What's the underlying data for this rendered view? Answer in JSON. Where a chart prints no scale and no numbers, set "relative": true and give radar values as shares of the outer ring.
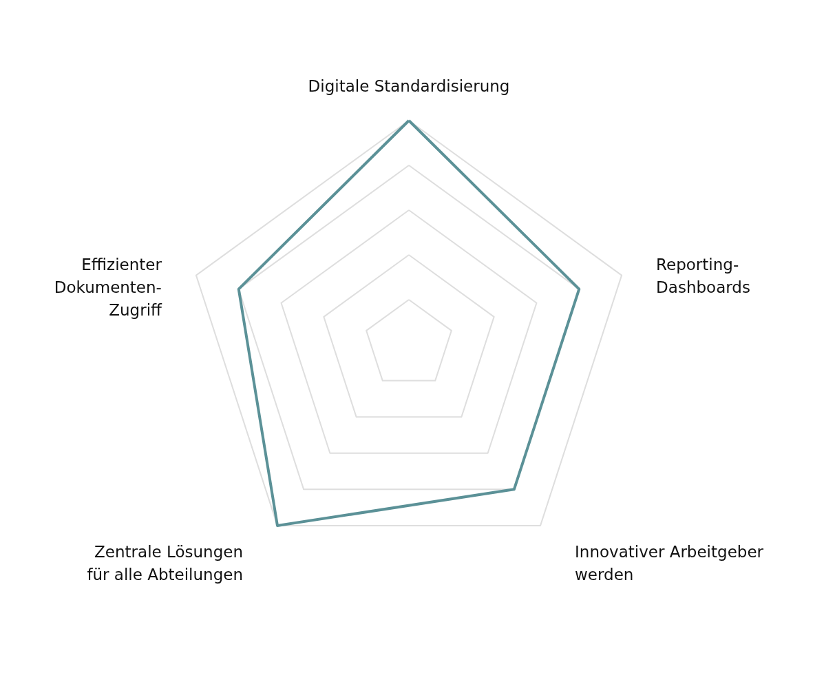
{
  "chart_data": {
    "type": "radar",
    "relative": true,
    "grid": true,
    "categories": [
      "Digitale Standardisierung",
      "Reporting-\nDashboards",
      "Innovativer Arbeitgeber\nwerden",
      "Zentrale Lösungen\nfür alle Abteilungen",
      "Effizienter\nDokumenten-\nZugriff"
    ],
    "series": [
      {
        "color": "#5b9197",
        "values": [
          1,
          0.8,
          0.8,
          1,
          0.8
        ]
      }
    ]
  }
}
